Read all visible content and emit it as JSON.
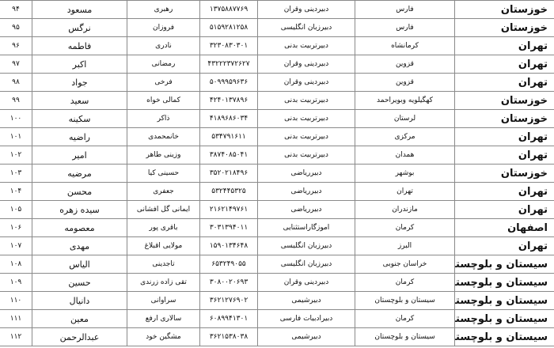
{
  "rows": [
    {
      "province": "خوزستان",
      "origin": "فارس",
      "subject": "دبیردینی وقران",
      "code": "۱۳۷۵۸۸۷۷۶۹",
      "last_name": "رهبری",
      "first_name": "مسعود",
      "num": "۹۴"
    },
    {
      "province": "خوزستان",
      "origin": "فارس",
      "subject": "دبیرزبان انگلیسی",
      "code": "۵۱۵۹۲۸۱۲۵۸",
      "last_name": "فروزان",
      "first_name": "نرگس",
      "num": "۹۵"
    },
    {
      "province": "تهران",
      "origin": "کرمانشاه",
      "subject": "دبیرتربیت بدنی",
      "code": "۳۲۳۰۸۳۰۳۰۱",
      "last_name": "نادری",
      "first_name": "فاطمه",
      "num": "۹۶"
    },
    {
      "province": "تهران",
      "origin": "قزوین",
      "subject": "دبیردینی وقران",
      "code": "۴۳۲۲۲۳۷۲۶۲۷",
      "last_name": "رمضانی",
      "first_name": "اکبر",
      "num": "۹۷"
    },
    {
      "province": "تهران",
      "origin": "قزوین",
      "subject": "دبیردینی وقران",
      "code": "۵۰۹۹۹۵۹۶۳۶",
      "last_name": "فرخی",
      "first_name": "جواد",
      "num": "۹۸"
    },
    {
      "province": "خوزستان",
      "origin": "کهگیلویه وبویراحمد",
      "subject": "دبیرتربیت بدنی",
      "code": "۴۲۴۰۱۳۷۸۹۶",
      "last_name": "کمالی خواه",
      "first_name": "سعید",
      "num": "۹۹"
    },
    {
      "province": "خوزستان",
      "origin": "لرستان",
      "subject": "دبیرتربیت بدنی",
      "code": "۴۱۸۹۶۸۶۰۳۴",
      "last_name": "ذاکر",
      "first_name": "سکینه",
      "num": "۱۰۰"
    },
    {
      "province": "تهران",
      "origin": "مرکزی",
      "subject": "دبیرتربیت بدنی",
      "code": "۵۳۴۷۹۱۶۱۱",
      "last_name": "خانمحمدی",
      "first_name": "راضیه",
      "num": "۱۰۱"
    },
    {
      "province": "تهران",
      "origin": "همدان",
      "subject": "دبیرتربیت بدنی",
      "code": "۳۸۷۴۰۸۵۰۴۱",
      "last_name": "وزینی طاهر",
      "first_name": "امیر",
      "num": "۱۰۲"
    },
    {
      "province": "خوزستان",
      "origin": "بوشهر",
      "subject": "دبیرریاضی",
      "code": "۳۵۲۰۲۱۸۴۹۶",
      "last_name": "حسینی کیا",
      "first_name": "مرضیه",
      "num": "۱۰۳"
    },
    {
      "province": "تهران",
      "origin": "تهران",
      "subject": "دبیرریاضی",
      "code": "۵۳۲۴۴۵۳۲۵",
      "last_name": "جعفری",
      "first_name": "محسن",
      "num": "۱۰۴"
    },
    {
      "province": "تهران",
      "origin": "مازندران",
      "subject": "دبیرریاضی",
      "code": "۲۱۶۲۱۴۹۷۶۱",
      "last_name": "ایمانی گل افشانی",
      "first_name": "سیده زهره",
      "num": "۱۰۵"
    },
    {
      "province": "اصفهان",
      "origin": "کرمان",
      "subject": "اموزگاراستثنایی",
      "code": "۳۰۳۱۳۹۴۰۱۱",
      "last_name": "باقری پور",
      "first_name": "معصومه",
      "num": "۱۰۶"
    },
    {
      "province": "تهران",
      "origin": "البرز",
      "subject": "دبیرزبان انگلیسی",
      "code": "۱۵۹۰۱۳۴۶۴۸",
      "last_name": "مولایی اقبلاغ",
      "first_name": "مهدی",
      "num": "۱۰۷"
    },
    {
      "province": "سیستان و بلوچستان",
      "origin": "خراسان جنوبی",
      "subject": "دبیرزبان انگلیسی",
      "code": "۶۵۳۲۴۹۰۵۵",
      "last_name": "تاجدینی",
      "first_name": "الیاس",
      "num": "۱۰۸"
    },
    {
      "province": "سیستان و بلوچستان",
      "origin": "کرمان",
      "subject": "دبیردینی وقران",
      "code": "۳۰۸۰۰۲۰۶۹۳",
      "last_name": "تقی زاده زرندی",
      "first_name": "حسین",
      "num": "۱۰۹"
    },
    {
      "province": "سیستان و بلوچستان",
      "origin": "سیستان و بلوچستان",
      "subject": "دبیرشیمی",
      "code": "۳۶۲۱۲۷۶۹۰۲",
      "last_name": "سراوانی",
      "first_name": "دانیال",
      "num": "۱۱۰"
    },
    {
      "province": "سیستان و بلوچستان",
      "origin": "کرمان",
      "subject": "دبیرادبیات فارسی",
      "code": "۶۰۸۹۹۴۱۳۰۱",
      "last_name": "سالاری ارفع",
      "first_name": "معین",
      "num": "۱۱۱"
    },
    {
      "province": "سیستان و بلوچستان",
      "origin": "سیستان و بلوچستان",
      "subject": "دبیرشیمی",
      "code": "۳۶۲۱۵۳۸۰۳۸",
      "last_name": "مشگین خود",
      "first_name": "عبدالرحمن",
      "num": "۱۱۲"
    }
  ]
}
